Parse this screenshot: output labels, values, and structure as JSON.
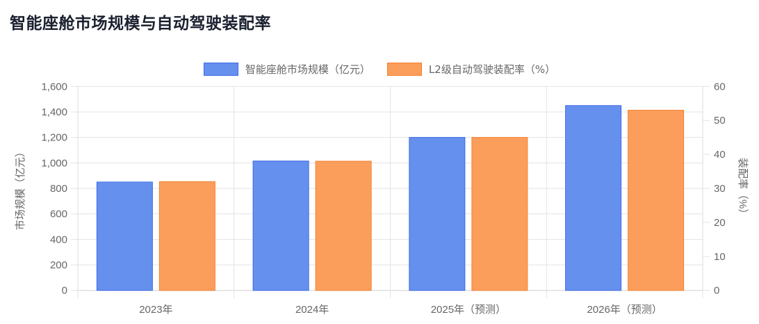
{
  "title": "智能座舱市场规模与自动驾驶装配率",
  "legend": [
    {
      "label": "智能座舱市场规模（亿元）",
      "fill": "#6690ee",
      "stroke": "#3b6ae8"
    },
    {
      "label": "L2级自动驾驶装配率（%）",
      "fill": "#fb9e5c",
      "stroke": "#f5812f"
    }
  ],
  "axes": {
    "left_label": "市场规模（亿元）",
    "right_label": "装配率（%）",
    "left_ticks": [
      "0",
      "200",
      "400",
      "600",
      "800",
      "1,000",
      "1,200",
      "1,400",
      "1,600"
    ],
    "right_ticks": [
      "0",
      "10",
      "20",
      "30",
      "40",
      "50",
      "60"
    ]
  },
  "chart_data": {
    "type": "bar",
    "title": "智能座舱市场规模与自动驾驶装配率",
    "categories": [
      "2023年",
      "2024年",
      "2025年（预测）",
      "2026年（预测）"
    ],
    "series": [
      {
        "name": "智能座舱市场规模（亿元）",
        "axis": "left",
        "values": [
          850,
          1015,
          1200,
          1450
        ],
        "color": "#6690ee"
      },
      {
        "name": "L2级自动驾驶装配率（%）",
        "axis": "right",
        "values": [
          32,
          38,
          45,
          53
        ],
        "color": "#fb9e5c"
      }
    ],
    "xlabel": "",
    "ylabel": "市场规模（亿元）",
    "y2label": "装配率（%）",
    "ylim": [
      0,
      1600
    ],
    "y2lim": [
      0,
      60
    ],
    "grid": true,
    "legend_position": "top"
  }
}
